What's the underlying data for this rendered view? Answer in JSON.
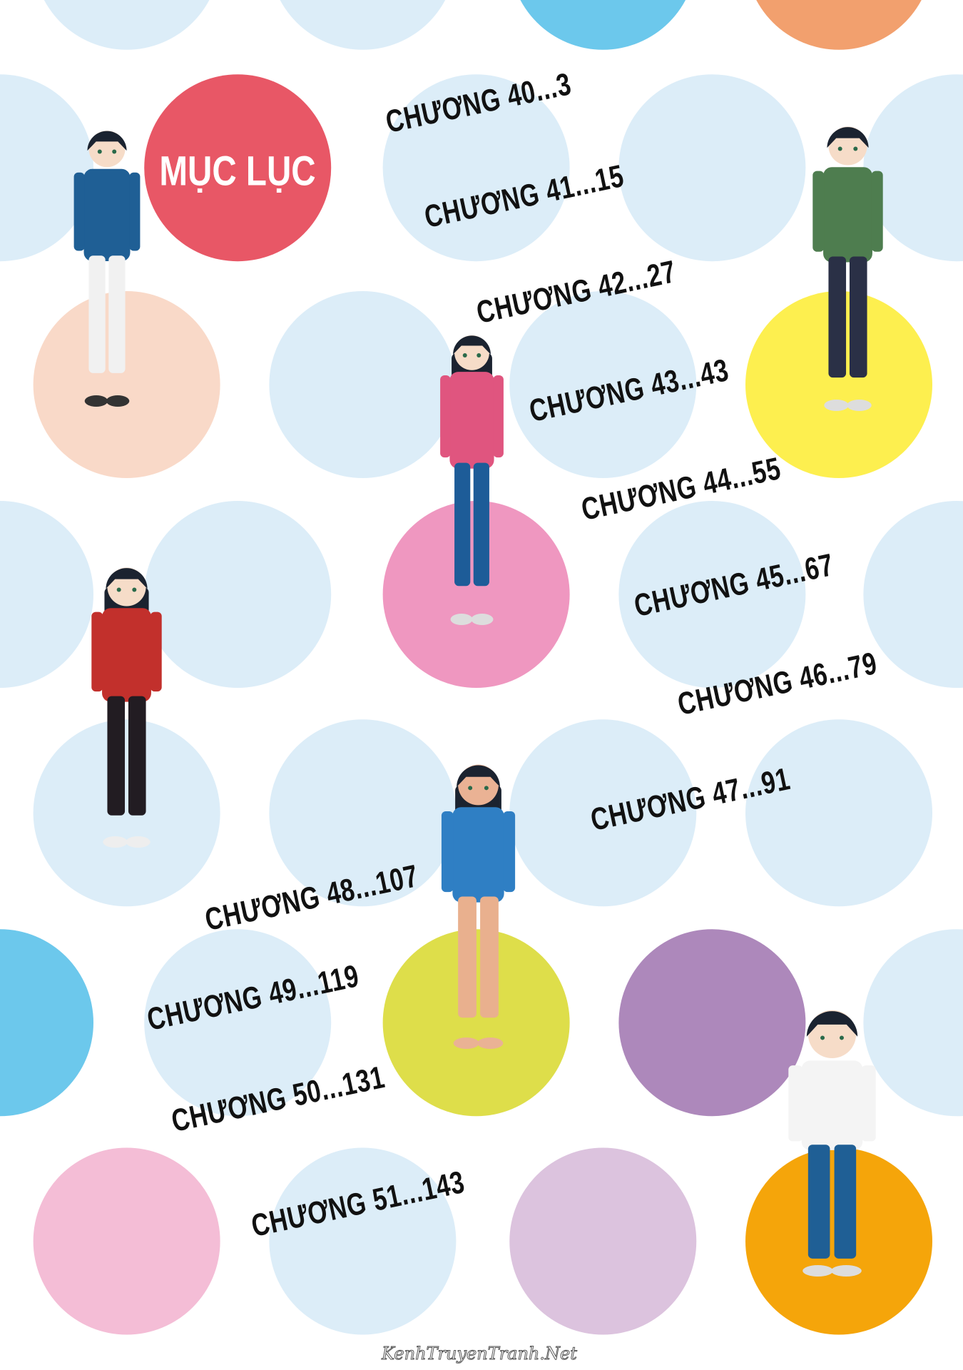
{
  "title": "MỤC LỤC",
  "colors": {
    "light_blue": "#dcedf8",
    "title_red": "#e85766",
    "blue": "#6cc8ec",
    "orange": "#f2a06e",
    "peach": "#f9d9c8",
    "yellow": "#fdef4f",
    "pink": "#ef97c0",
    "yellow_green": "#dede4a",
    "purple": "#ad88bb",
    "light_pink": "#f4bdd6",
    "lavender": "#dcc3de",
    "amber": "#f5a50a"
  },
  "chapters": [
    {
      "label": "CHƯƠNG 40...3"
    },
    {
      "label": "CHƯƠNG 41...15"
    },
    {
      "label": "CHƯƠNG 42...27"
    },
    {
      "label": "CHƯƠNG 43...43"
    },
    {
      "label": "CHƯƠNG 44...55"
    },
    {
      "label": "CHƯƠNG 45...67"
    },
    {
      "label": "CHƯƠNG 46...79"
    },
    {
      "label": "CHƯƠNG 47...91"
    },
    {
      "label": "CHƯƠNG 48...107"
    },
    {
      "label": "CHƯƠNG 49...119"
    },
    {
      "label": "CHƯƠNG 50...131"
    },
    {
      "label": "CHƯƠNG 51...143"
    }
  ],
  "characters": [
    {
      "name": "boy-in-blue-uniform"
    },
    {
      "name": "girl-in-green-apron"
    },
    {
      "name": "girl-in-pink-tracksuit"
    },
    {
      "name": "girl-in-santa-outfit"
    },
    {
      "name": "girl-in-blue-swimsuit"
    },
    {
      "name": "girl-running-in-gym-clothes"
    }
  ],
  "watermark": "KenhTruyenTranh.Net"
}
